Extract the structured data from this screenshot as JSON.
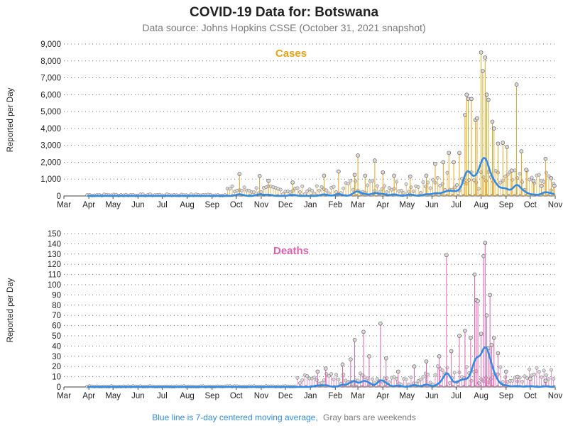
{
  "title": "COVID-19 Data for: Botswana",
  "subtitle": "Data source: Johns Hopkins CSSE (October 31, 2021 snapshot)",
  "footnote": {
    "blue_text": "Blue line is 7-day centered moving average,",
    "gray_text": "Gray bars are weekends"
  },
  "colors": {
    "cases": "#e8a317",
    "deaths": "#e060b0",
    "moving_average": "#2f8be6",
    "weekend": "#9a9a9a",
    "footnote_blue": "#2f8be6",
    "footnote_gray": "#7a7a7a"
  },
  "chart_data": [
    {
      "type": "bar",
      "name": "cases",
      "label": "Cases",
      "ylabel": "Reported per Day",
      "ylim": [
        0,
        9000
      ],
      "yticks": [
        "0",
        "1,000",
        "2,000",
        "3,000",
        "4,000",
        "5,000",
        "6,000",
        "7,000",
        "8,000",
        "9,000"
      ],
      "xticks": [
        "Mar",
        "Apr",
        "May",
        "Jun",
        "Jul",
        "Aug",
        "Sep",
        "Oct",
        "Nov",
        "Dec",
        "Jan",
        "Feb",
        "Mar",
        "Apr",
        "May",
        "Jun",
        "Jul",
        "Aug",
        "Sep",
        "Oct",
        "Nov"
      ],
      "grid": "horizontal dotted",
      "x_start": "2020-03-01",
      "x_end": "2021-11-01",
      "data_start": "2020-03-30",
      "data_end": "2021-10-31",
      "moving_average_peak": 2250,
      "series": [
        {
          "x": "2020-10-05",
          "y": 1300
        },
        {
          "x": "2020-10-30",
          "y": 1180
        },
        {
          "x": "2020-11-10",
          "y": 900
        },
        {
          "x": "2020-12-10",
          "y": 800
        },
        {
          "x": "2021-01-18",
          "y": 1200
        },
        {
          "x": "2021-02-05",
          "y": 1450
        },
        {
          "x": "2021-02-25",
          "y": 1250
        },
        {
          "x": "2021-03-01",
          "y": 2400
        },
        {
          "x": "2021-03-10",
          "y": 1200
        },
        {
          "x": "2021-03-22",
          "y": 2100
        },
        {
          "x": "2021-04-01",
          "y": 1400
        },
        {
          "x": "2021-04-15",
          "y": 1200
        },
        {
          "x": "2021-05-05",
          "y": 1150
        },
        {
          "x": "2021-05-25",
          "y": 1200
        },
        {
          "x": "2021-06-05",
          "y": 1900
        },
        {
          "x": "2021-06-15",
          "y": 2000
        },
        {
          "x": "2021-06-22",
          "y": 2550
        },
        {
          "x": "2021-06-28",
          "y": 2000
        },
        {
          "x": "2021-07-05",
          "y": 2550
        },
        {
          "x": "2021-07-12",
          "y": 4800
        },
        {
          "x": "2021-07-14",
          "y": 6000
        },
        {
          "x": "2021-07-16",
          "y": 5750
        },
        {
          "x": "2021-07-20",
          "y": 5750
        },
        {
          "x": "2021-07-25",
          "y": 4500
        },
        {
          "x": "2021-07-27",
          "y": 4600
        },
        {
          "x": "2021-08-01",
          "y": 8500
        },
        {
          "x": "2021-08-03",
          "y": 7400
        },
        {
          "x": "2021-08-06",
          "y": 8200
        },
        {
          "x": "2021-08-08",
          "y": 6000
        },
        {
          "x": "2021-08-10",
          "y": 5700
        },
        {
          "x": "2021-08-15",
          "y": 4400
        },
        {
          "x": "2021-08-17",
          "y": 4000
        },
        {
          "x": "2021-08-22",
          "y": 3100
        },
        {
          "x": "2021-08-28",
          "y": 3150
        },
        {
          "x": "2021-09-02",
          "y": 2900
        },
        {
          "x": "2021-09-08",
          "y": 1500
        },
        {
          "x": "2021-09-14",
          "y": 6600
        },
        {
          "x": "2021-09-20",
          "y": 2650
        },
        {
          "x": "2021-09-26",
          "y": 1550
        },
        {
          "x": "2021-10-05",
          "y": 900
        },
        {
          "x": "2021-10-15",
          "y": 600
        },
        {
          "x": "2021-10-20",
          "y": 2200
        },
        {
          "x": "2021-10-27",
          "y": 1050
        },
        {
          "x": "2021-10-31",
          "y": 600
        }
      ]
    },
    {
      "type": "bar",
      "name": "deaths",
      "label": "Deaths",
      "ylabel": "Reported per Day",
      "ylim": [
        0,
        150
      ],
      "yticks": [
        "0",
        "10",
        "20",
        "30",
        "40",
        "50",
        "60",
        "70",
        "80",
        "90",
        "100",
        "110",
        "120",
        "130",
        "140",
        "150"
      ],
      "xticks": [
        "Mar",
        "Apr",
        "May",
        "Jun",
        "Jul",
        "Aug",
        "Sep",
        "Oct",
        "Nov",
        "Dec",
        "Jan",
        "Feb",
        "Mar",
        "Apr",
        "May",
        "Jun",
        "Jul",
        "Aug",
        "Sep",
        "Oct",
        "Nov"
      ],
      "grid": "horizontal dotted",
      "x_start": "2020-03-01",
      "x_end": "2021-11-01",
      "data_start": "2020-03-30",
      "data_end": "2021-10-31",
      "moving_average_peak": 39,
      "series": [
        {
          "x": "2021-01-10",
          "y": 15
        },
        {
          "x": "2021-01-20",
          "y": 18
        },
        {
          "x": "2021-02-10",
          "y": 22
        },
        {
          "x": "2021-02-20",
          "y": 27
        },
        {
          "x": "2021-02-25",
          "y": 46
        },
        {
          "x": "2021-03-08",
          "y": 54
        },
        {
          "x": "2021-03-15",
          "y": 30
        },
        {
          "x": "2021-03-29",
          "y": 62
        },
        {
          "x": "2021-04-05",
          "y": 28
        },
        {
          "x": "2021-04-20",
          "y": 15
        },
        {
          "x": "2021-05-10",
          "y": 20
        },
        {
          "x": "2021-05-25",
          "y": 25
        },
        {
          "x": "2021-06-10",
          "y": 30
        },
        {
          "x": "2021-06-19",
          "y": 129
        },
        {
          "x": "2021-06-25",
          "y": 35
        },
        {
          "x": "2021-07-05",
          "y": 50
        },
        {
          "x": "2021-07-12",
          "y": 55
        },
        {
          "x": "2021-07-19",
          "y": 48
        },
        {
          "x": "2021-07-24",
          "y": 110
        },
        {
          "x": "2021-07-26",
          "y": 85
        },
        {
          "x": "2021-07-28",
          "y": 84
        },
        {
          "x": "2021-08-01",
          "y": 52
        },
        {
          "x": "2021-08-04",
          "y": 128
        },
        {
          "x": "2021-08-06",
          "y": 141
        },
        {
          "x": "2021-08-08",
          "y": 70
        },
        {
          "x": "2021-08-10",
          "y": 38
        },
        {
          "x": "2021-08-12",
          "y": 90
        },
        {
          "x": "2021-08-14",
          "y": 41
        },
        {
          "x": "2021-08-17",
          "y": 48
        },
        {
          "x": "2021-08-22",
          "y": 33
        },
        {
          "x": "2021-09-01",
          "y": 15
        },
        {
          "x": "2021-09-15",
          "y": 10
        },
        {
          "x": "2021-10-01",
          "y": 8
        },
        {
          "x": "2021-10-20",
          "y": 6
        }
      ]
    }
  ]
}
